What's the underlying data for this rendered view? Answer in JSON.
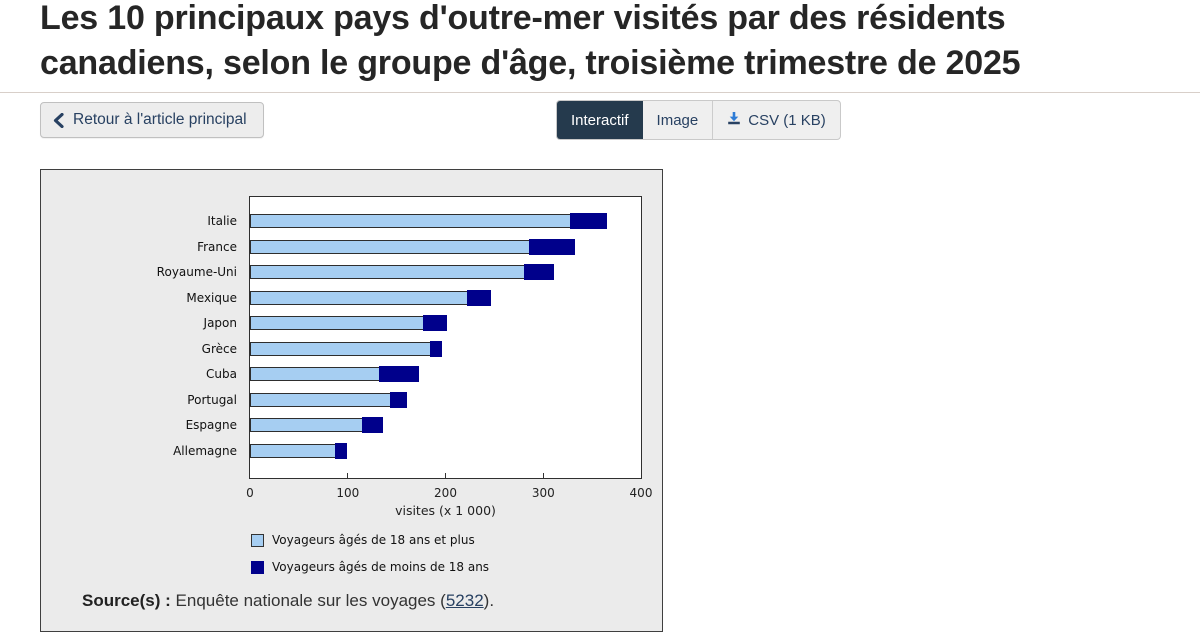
{
  "page": {
    "title": "Les 10 principaux pays d'outre-mer visités par des résidents canadiens, selon le groupe d'âge, troisième trimestre de 2025",
    "title_lines": [
      "Les 10 principaux pays d'outre-mer visités par des résidents",
      "canadiens, selon le groupe d'âge, troisième trimestre de 2025"
    ]
  },
  "toolbar": {
    "back_label": "Retour à l'article principal",
    "back_icon": "chevron-left-icon",
    "tabs": [
      {
        "label": "Interactif",
        "active": true
      },
      {
        "label": "Image",
        "active": false
      },
      {
        "label": "CSV (1 KB)",
        "active": false,
        "icon": "download-icon"
      }
    ]
  },
  "colors": {
    "active_tab_bg": "#253a4d",
    "link_text": "#284162",
    "panel_bg": "#ebebeb",
    "adults_bar": "#a6cef2",
    "minors_bar": "#00008b"
  },
  "chart_data": {
    "type": "bar",
    "orientation": "horizontal",
    "stacked": true,
    "categories": [
      "Italie",
      "France",
      "Royaume-Uni",
      "Mexique",
      "Japon",
      "Grèce",
      "Cuba",
      "Portugal",
      "Espagne",
      "Allemagne"
    ],
    "series": [
      {
        "name": "Voyageurs âgés de 18 ans et plus",
        "color": "#a6cef2",
        "values": [
          328,
          286,
          281,
          223,
          178,
          185,
          133,
          144,
          116,
          88
        ]
      },
      {
        "name": "Voyageurs âgés de moins de 18 ans",
        "color": "#00008b",
        "values": [
          37,
          46,
          30,
          23,
          23,
          12,
          40,
          17,
          20,
          11
        ]
      }
    ],
    "totals": [
      365,
      332,
      311,
      246,
      201,
      197,
      173,
      161,
      136,
      99
    ],
    "xlabel": "visites (x 1 000)",
    "xlim": [
      0,
      400
    ],
    "xticks": [
      0,
      100,
      200,
      300,
      400
    ],
    "grid": false,
    "legend_position": "bottom-left"
  },
  "source": {
    "label": "Source(s) :",
    "before_link": "Enquête nationale sur les voyages (",
    "link": "5232",
    "after_link": ")."
  }
}
